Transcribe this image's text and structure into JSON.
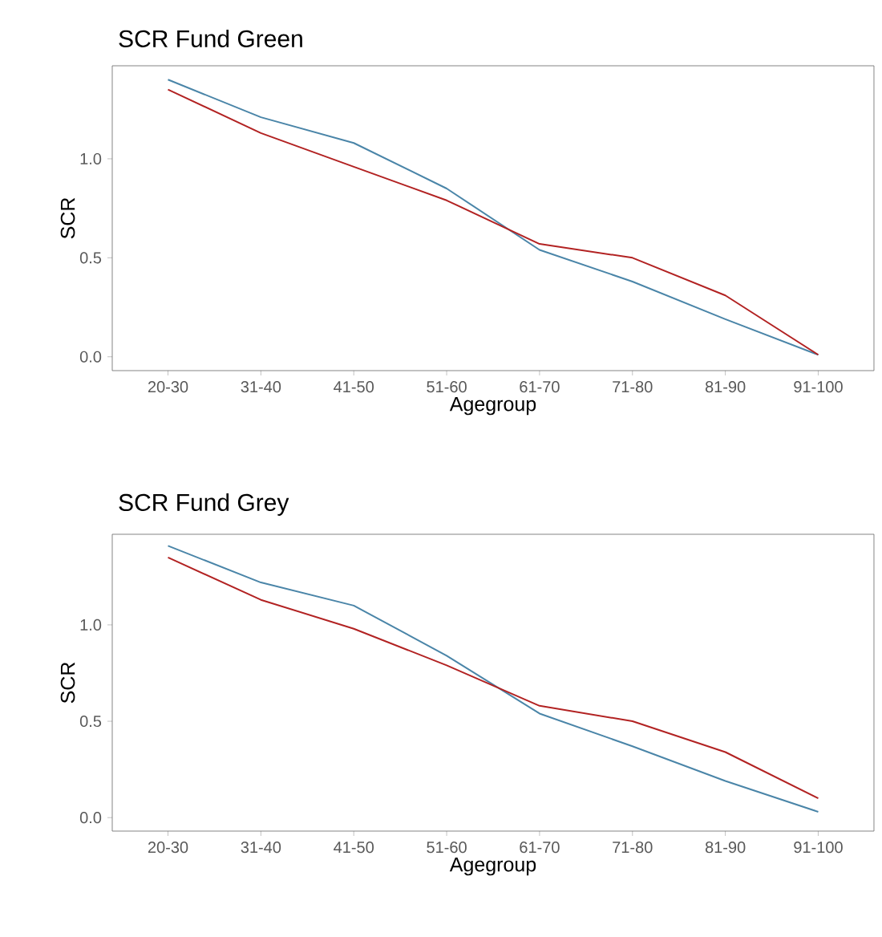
{
  "chart_data": [
    {
      "type": "line",
      "title": "SCR Fund Green",
      "xlabel": "Agegroup",
      "ylabel": "SCR",
      "categories": [
        "20-30",
        "31-40",
        "41-50",
        "51-60",
        "61-70",
        "71-80",
        "81-90",
        "91-100"
      ],
      "series": [
        {
          "color": "#4a85a8",
          "values": [
            1.4,
            1.21,
            1.08,
            0.85,
            0.54,
            0.38,
            0.19,
            0.01
          ]
        },
        {
          "color": "#b22222",
          "values": [
            1.35,
            1.13,
            0.96,
            0.79,
            0.57,
            0.5,
            0.31,
            0.01
          ]
        }
      ],
      "ylim": [
        -0.07,
        1.47
      ],
      "yticks": [
        {
          "value": 0,
          "label": "0.0"
        },
        {
          "value": 0.5,
          "label": "0.5"
        },
        {
          "value": 1,
          "label": "1.0"
        }
      ]
    },
    {
      "type": "line",
      "title": "SCR Fund Grey",
      "xlabel": "Agegroup",
      "ylabel": "SCR",
      "categories": [
        "20-30",
        "31-40",
        "41-50",
        "51-60",
        "61-70",
        "71-80",
        "81-90",
        "91-100"
      ],
      "series": [
        {
          "color": "#4a85a8",
          "values": [
            1.41,
            1.22,
            1.1,
            0.84,
            0.54,
            0.37,
            0.19,
            0.03
          ]
        },
        {
          "color": "#b22222",
          "values": [
            1.35,
            1.13,
            0.98,
            0.79,
            0.58,
            0.5,
            0.34,
            0.1
          ]
        }
      ],
      "ylim": [
        -0.07,
        1.47
      ],
      "yticks": [
        {
          "value": 0,
          "label": "0.0"
        },
        {
          "value": 0.5,
          "label": "0.5"
        },
        {
          "value": 1,
          "label": "1.0"
        }
      ]
    }
  ]
}
